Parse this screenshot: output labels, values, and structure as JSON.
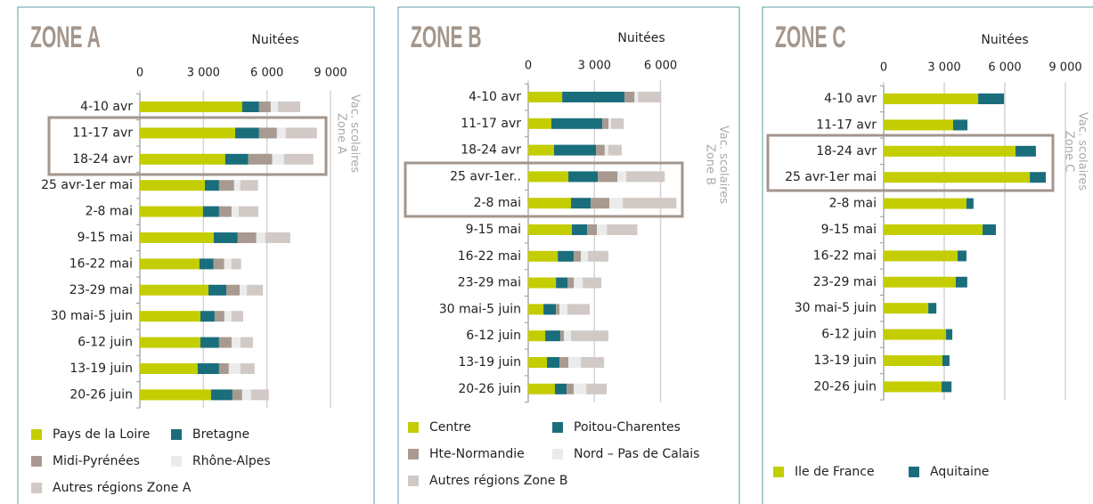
{
  "chart_data": [
    {
      "type": "bar",
      "title": "ZONE A",
      "x_label": "Nuitées",
      "annotations": [
        "Vac. scolaires",
        "Zone A"
      ],
      "categories": [
        "4-10 avr",
        "11-17 avr",
        "18-24 avr",
        "25 avr-1er mai",
        "2-8 mai",
        "9-15 mai",
        "16-22 mai",
        "23-29 mai",
        "30 mai-5 juin",
        "6-12 juin",
        "13-19 juin",
        "20-26 juin"
      ],
      "series": [
        {
          "name": "Pays de la Loire",
          "color": "#c3cd00",
          "values": [
            4830,
            4500,
            4030,
            3070,
            2980,
            3490,
            2810,
            3240,
            2860,
            2860,
            2730,
            3360
          ]
        },
        {
          "name": "Bretagne",
          "color": "#1a6e7c",
          "values": [
            800,
            1130,
            1090,
            670,
            760,
            1130,
            670,
            840,
            670,
            880,
            1010,
            1010
          ]
        },
        {
          "name": "Midi-Pyrénées",
          "color": "#a89a90",
          "values": [
            550,
            840,
            1130,
            710,
            590,
            880,
            500,
            630,
            460,
            590,
            460,
            460
          ]
        },
        {
          "name": "Rhône-Alpes",
          "color": "#ebebeb",
          "values": [
            340,
            420,
            550,
            290,
            340,
            420,
            340,
            340,
            340,
            420,
            550,
            420
          ]
        },
        {
          "name": "Autres régions Zone A",
          "color": "#d0c9c5",
          "values": [
            1050,
            1470,
            1390,
            840,
            920,
            1180,
            460,
            760,
            550,
            590,
            670,
            840
          ]
        }
      ],
      "xlim": [
        0,
        9000
      ],
      "xticks": [
        0,
        {
          "value": 3000,
          "label": "3 000"
        },
        {
          "value": 6000,
          "label": "6 000"
        },
        {
          "value": 9000,
          "label": "9 000"
        }
      ],
      "stacked": true,
      "orientation": "horizontal",
      "grid": true
    },
    {
      "type": "bar",
      "title": "ZONE B",
      "x_label": "Nuitées",
      "annotations": [
        "Vac. scolaires",
        "Zone B"
      ],
      "categories": [
        "4-10 avr",
        "11-17 avr",
        "18-24 avr",
        "25 avr-1er..",
        "2-8 mai",
        "9-15 mai",
        "16-22 mai",
        "23-29 mai",
        "30 mai-5 juin",
        "6-12 juin",
        "13-19 juin",
        "20-26 juin"
      ],
      "series": [
        {
          "name": "Centre",
          "color": "#c3cd00",
          "values": [
            1540,
            1050,
            1170,
            1820,
            1940,
            1980,
            1340,
            1260,
            690,
            770,
            850,
            1210
          ]
        },
        {
          "name": "Poitou-Charentes",
          "color": "#1a6e7c",
          "values": [
            2830,
            2310,
            1900,
            1340,
            890,
            690,
            730,
            530,
            570,
            690,
            570,
            530
          ]
        },
        {
          "name": "Hte-Normandie",
          "color": "#a89a90",
          "values": [
            450,
            280,
            400,
            890,
            850,
            450,
            320,
            280,
            160,
            160,
            400,
            320
          ]
        },
        {
          "name": "Nord – Pas de Calais",
          "color": "#ebebeb",
          "values": [
            160,
            120,
            160,
            400,
            610,
            450,
            320,
            400,
            360,
            320,
            570,
            570
          ]
        },
        {
          "name": "Autres régions Zone B",
          "color": "#d0c9c5",
          "values": [
            1050,
            570,
            610,
            1740,
            2430,
            1380,
            930,
            850,
            1010,
            1700,
            1050,
            930
          ]
        }
      ],
      "xlim": [
        0,
        8000
      ],
      "xticks": [
        0,
        {
          "value": 3000,
          "label": "3 000"
        },
        {
          "value": 6000,
          "label": "6 000"
        }
      ],
      "stacked": true,
      "orientation": "horizontal",
      "grid": true
    },
    {
      "type": "bar",
      "title": "ZONE C",
      "x_label": "Nuitées",
      "annotations": [
        "Vac. scolaires",
        "Zone C"
      ],
      "categories": [
        "4-10 avr",
        "11-17 avr",
        "18-24 avr",
        "25 avr-1er mai",
        "2-8 mai",
        "9-15 mai",
        "16-22 mai",
        "23-29 mai",
        "30 mai-5 juin",
        "6-12 juin",
        "13-19 juin",
        "20-26 juin"
      ],
      "series": [
        {
          "name": "Ile de France",
          "color": "#c3cd00",
          "values": [
            4680,
            3440,
            6530,
            7240,
            4100,
            4900,
            3660,
            3570,
            2210,
            3090,
            2910,
            2870
          ]
        },
        {
          "name": "Aquitaine",
          "color": "#1a6e7c",
          "values": [
            1280,
            710,
            1010,
            790,
            350,
            660,
            440,
            570,
            400,
            310,
            350,
            490
          ]
        }
      ],
      "xlim": [
        0,
        9000
      ],
      "xticks": [
        0,
        {
          "value": 3000,
          "label": "3 000"
        },
        {
          "value": 6000,
          "label": "6 000"
        },
        {
          "value": 9000,
          "label": "9 000"
        }
      ],
      "stacked": true,
      "orientation": "horizontal",
      "grid": true
    }
  ]
}
